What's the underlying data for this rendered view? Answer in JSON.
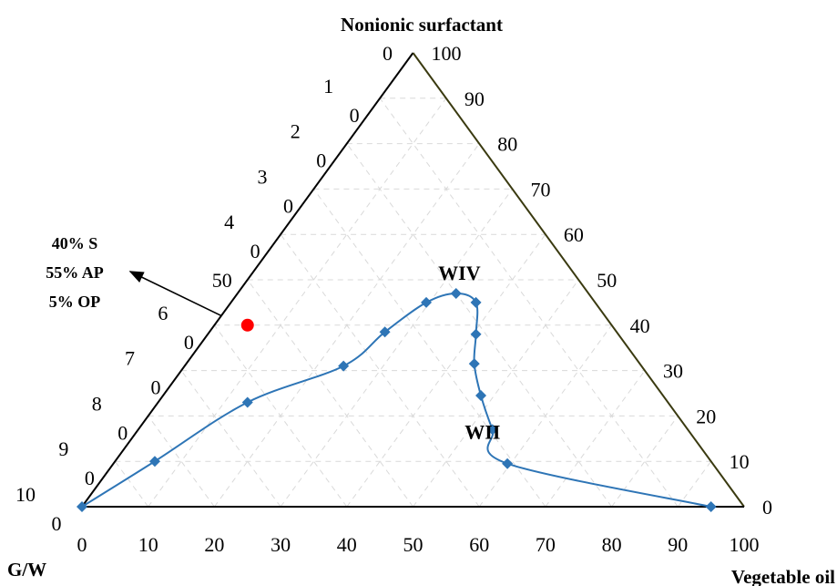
{
  "chart_data": {
    "type": "ternary",
    "vertices": {
      "top": "Nonionic surfactant",
      "bottom_left": "G/W",
      "bottom_right": "Vegetable oil"
    },
    "bottom_axis_ticks": [
      "0",
      "10",
      "20",
      "30",
      "40",
      "50",
      "60",
      "70",
      "80",
      "90",
      "100"
    ],
    "right_axis_ticks": [
      "0",
      "10",
      "20",
      "30",
      "40",
      "50",
      "60",
      "70",
      "80",
      "90",
      "100"
    ],
    "left_axis_ticks": [
      {
        "lines": [
          "0"
        ]
      },
      {
        "lines": [
          "1",
          "0"
        ]
      },
      {
        "lines": [
          "2",
          "0"
        ]
      },
      {
        "lines": [
          "3",
          "0"
        ]
      },
      {
        "lines": [
          "4",
          "0"
        ]
      },
      {
        "lines": [
          "50"
        ]
      },
      {
        "lines": [
          "6",
          "0"
        ]
      },
      {
        "lines": [
          "7",
          "0"
        ]
      },
      {
        "lines": [
          "8",
          "0"
        ]
      },
      {
        "lines": [
          "9",
          "0"
        ]
      },
      {
        "lines": [
          "10",
          "0"
        ]
      }
    ],
    "grid": true,
    "region_labels": [
      {
        "text": "WIV",
        "oil": 32,
        "surfactant": 50
      },
      {
        "text": "WII",
        "oil": 53,
        "surfactant": 15
      }
    ],
    "series": [
      {
        "color": "#2E75B6",
        "marker": "diamond",
        "points": [
          {
            "oil": 0,
            "surfactant": 0
          },
          {
            "oil": 6,
            "surfactant": 10
          },
          {
            "oil": 13.5,
            "surfactant": 23
          },
          {
            "oil": 24,
            "surfactant": 31
          },
          {
            "oil": 26.5,
            "surfactant": 38.5
          },
          {
            "oil": 29.5,
            "surfactant": 45
          },
          {
            "oil": 33,
            "surfactant": 47
          },
          {
            "oil": 37,
            "surfactant": 45
          },
          {
            "oil": 40.5,
            "surfactant": 38
          },
          {
            "oil": 43.5,
            "surfactant": 31.5
          },
          {
            "oil": 48,
            "surfactant": 24.5
          },
          {
            "oil": 53.5,
            "surfactant": 17
          },
          {
            "oil": 59.5,
            "surfactant": 9.5
          },
          {
            "oil": 95,
            "surfactant": 0
          }
        ]
      }
    ],
    "highlight_point": {
      "oil": 5,
      "surfactant": 40,
      "color": "#ff0000"
    },
    "annotation": {
      "lines": [
        "40% S",
        "55% AP",
        "5% OP"
      ]
    },
    "colors": {
      "left_edge": "#000000",
      "right_edge": "#3a3a10",
      "bottom_edge": "#000000",
      "grid": "#d9d9d9",
      "curve": "#2E75B6",
      "marker": "#2E75B6",
      "highlight": "#ff0000"
    }
  }
}
